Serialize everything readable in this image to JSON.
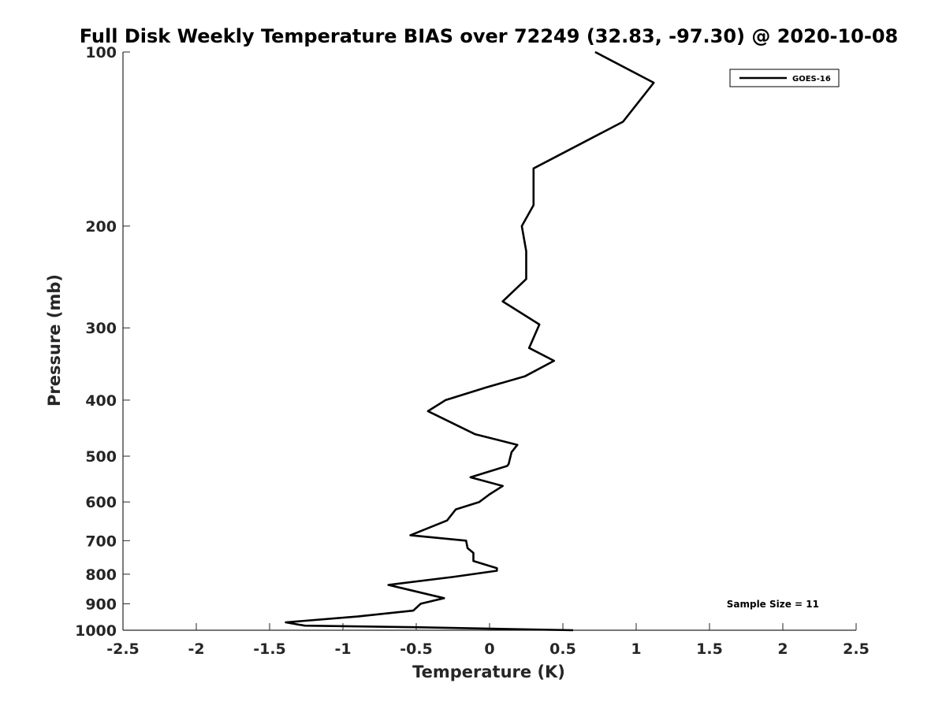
{
  "chart_data": {
    "type": "line",
    "title": "Full Disk Weekly Temperature BIAS over 72249 (32.83, -97.30) @ 2020-10-08",
    "xlabel": "Temperature (K)",
    "ylabel": "Pressure (mb)",
    "xlim": [
      -2.5,
      2.5
    ],
    "ylim": [
      1000,
      100
    ],
    "y_scale": "log",
    "y_reversed": true,
    "grid": false,
    "legend_position": "top-right",
    "x_ticks": [
      "-2.5",
      "-2",
      "-1.5",
      "-1",
      "-0.5",
      "0",
      "0.5",
      "1",
      "1.5",
      "2",
      "2.5"
    ],
    "y_ticks": [
      "100",
      "200",
      "300",
      "400",
      "500",
      "600",
      "700",
      "800",
      "900",
      "1000"
    ],
    "series": [
      {
        "name": "GOES-16",
        "color": "#000000",
        "points": [
          {
            "x": 0.72,
            "p": 100
          },
          {
            "x": 1.12,
            "p": 113
          },
          {
            "x": 0.91,
            "p": 132
          },
          {
            "x": 0.3,
            "p": 159
          },
          {
            "x": 0.3,
            "p": 184
          },
          {
            "x": 0.22,
            "p": 200
          },
          {
            "x": 0.25,
            "p": 221
          },
          {
            "x": 0.25,
            "p": 247
          },
          {
            "x": 0.09,
            "p": 270
          },
          {
            "x": 0.34,
            "p": 296
          },
          {
            "x": 0.27,
            "p": 325
          },
          {
            "x": 0.44,
            "p": 342
          },
          {
            "x": 0.24,
            "p": 364
          },
          {
            "x": -0.02,
            "p": 380
          },
          {
            "x": -0.3,
            "p": 400
          },
          {
            "x": -0.42,
            "p": 418
          },
          {
            "x": -0.1,
            "p": 458
          },
          {
            "x": 0.19,
            "p": 478
          },
          {
            "x": 0.15,
            "p": 492
          },
          {
            "x": 0.13,
            "p": 516
          },
          {
            "x": 0.12,
            "p": 520
          },
          {
            "x": -0.13,
            "p": 544
          },
          {
            "x": 0.09,
            "p": 563
          },
          {
            "x": 0.0,
            "p": 582
          },
          {
            "x": -0.07,
            "p": 600
          },
          {
            "x": -0.23,
            "p": 618
          },
          {
            "x": -0.29,
            "p": 646
          },
          {
            "x": -0.54,
            "p": 685
          },
          {
            "x": -0.16,
            "p": 700
          },
          {
            "x": -0.15,
            "p": 721
          },
          {
            "x": -0.11,
            "p": 735
          },
          {
            "x": -0.11,
            "p": 759
          },
          {
            "x": 0.05,
            "p": 781
          },
          {
            "x": 0.05,
            "p": 789
          },
          {
            "x": -0.25,
            "p": 809
          },
          {
            "x": -0.69,
            "p": 835
          },
          {
            "x": -0.31,
            "p": 880
          },
          {
            "x": -0.47,
            "p": 900
          },
          {
            "x": -0.52,
            "p": 925
          },
          {
            "x": -0.9,
            "p": 947
          },
          {
            "x": -1.39,
            "p": 969
          },
          {
            "x": -1.26,
            "p": 982
          },
          {
            "x": -0.5,
            "p": 988
          },
          {
            "x": 0.57,
            "p": 1000
          }
        ]
      }
    ],
    "legend": [
      {
        "label": "GOES-16",
        "color": "#000000"
      }
    ],
    "annotations": [
      {
        "text": "Sample Size = 11",
        "position": "bottom-right"
      }
    ]
  }
}
